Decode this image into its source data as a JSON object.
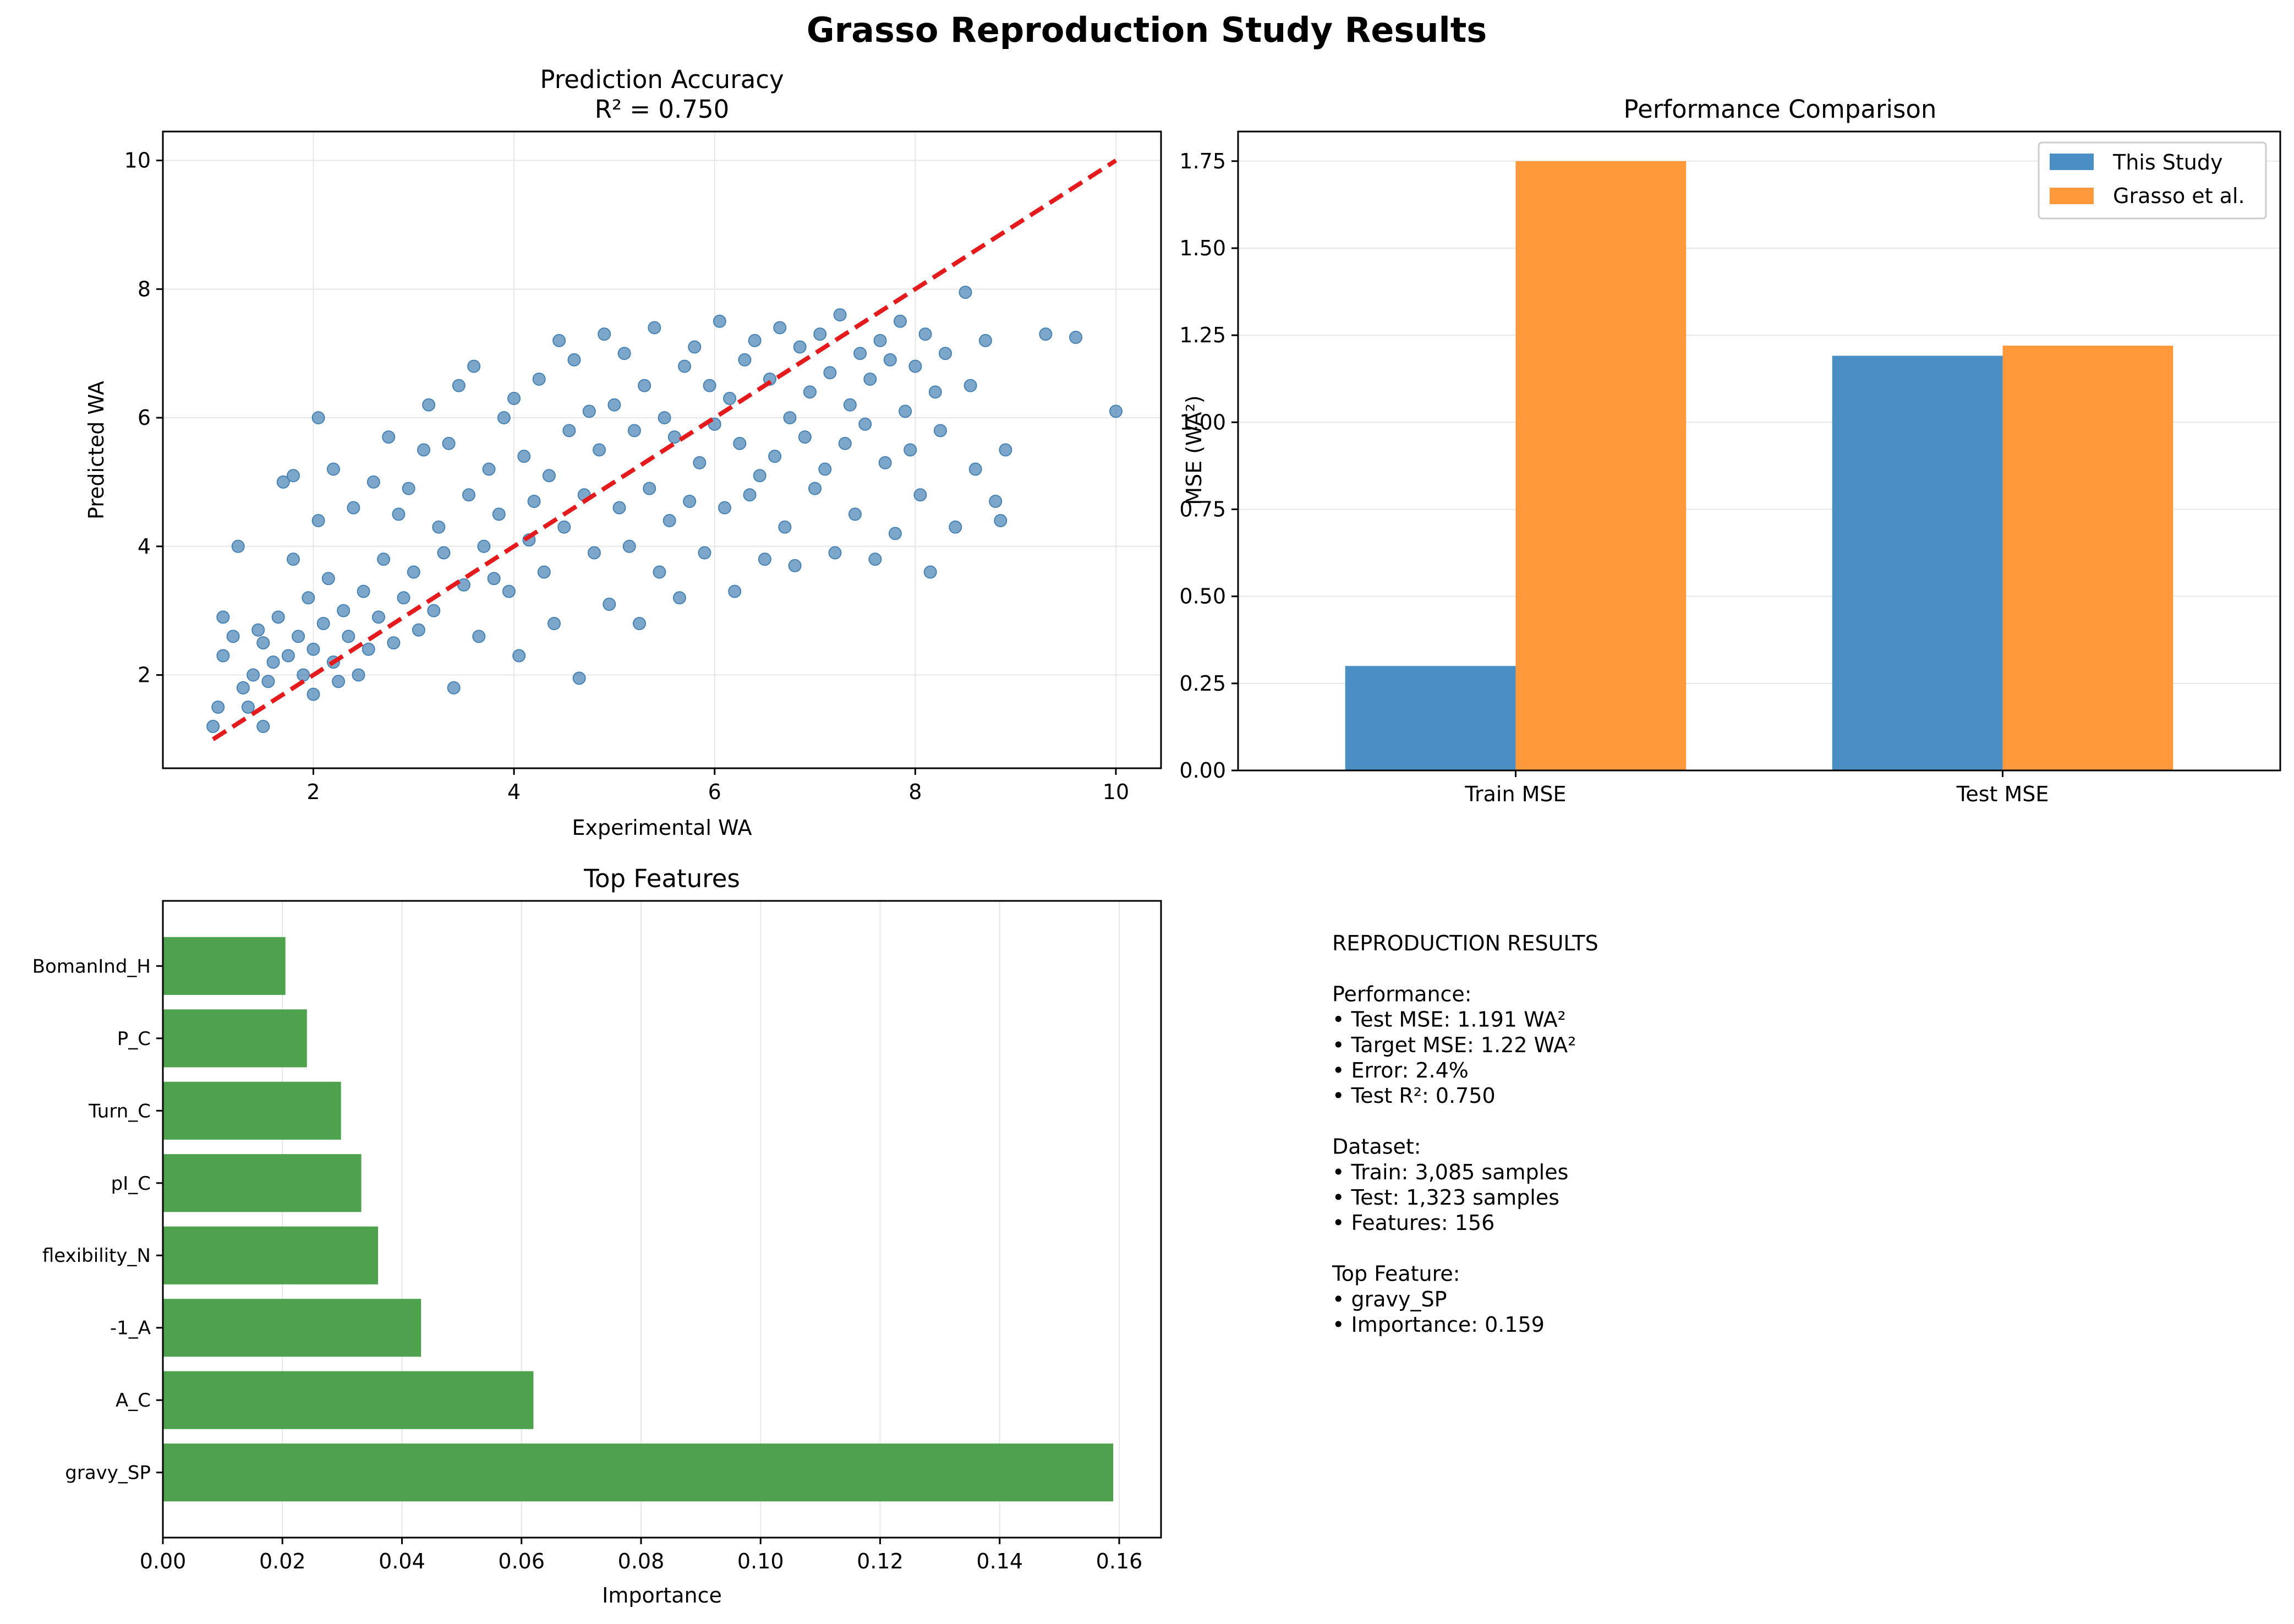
{
  "suptitle": "Grasso Reproduction Study Results",
  "chart_data": [
    {
      "type": "scatter",
      "title": "Prediction Accuracy",
      "subtitle": "R² = 0.750",
      "xlabel": "Experimental WA",
      "ylabel": "Predicted WA",
      "xlim": [
        0.5,
        10.45
      ],
      "ylim": [
        0.55,
        10.45
      ],
      "xticks": [
        2,
        4,
        6,
        8,
        10
      ],
      "yticks": [
        2,
        4,
        6,
        8,
        10
      ],
      "grid": true,
      "marker_color": "#4682b4",
      "reference_line": {
        "x": [
          1,
          10
        ],
        "y": [
          1,
          10
        ],
        "color": "#e41a1c",
        "style": "dashed"
      },
      "points": [
        [
          1.0,
          1.2
        ],
        [
          1.05,
          1.5
        ],
        [
          1.1,
          2.9
        ],
        [
          1.1,
          2.3
        ],
        [
          1.2,
          2.6
        ],
        [
          1.25,
          4.0
        ],
        [
          1.3,
          1.8
        ],
        [
          1.35,
          1.5
        ],
        [
          1.4,
          2.0
        ],
        [
          1.45,
          2.7
        ],
        [
          1.5,
          2.5
        ],
        [
          1.5,
          1.2
        ],
        [
          1.55,
          1.9
        ],
        [
          1.6,
          2.2
        ],
        [
          1.65,
          2.9
        ],
        [
          1.7,
          5.0
        ],
        [
          1.75,
          2.3
        ],
        [
          1.8,
          5.1
        ],
        [
          1.8,
          3.8
        ],
        [
          1.85,
          2.6
        ],
        [
          1.9,
          2.0
        ],
        [
          1.95,
          3.2
        ],
        [
          2.0,
          2.4
        ],
        [
          2.0,
          1.7
        ],
        [
          2.05,
          4.4
        ],
        [
          2.05,
          6.0
        ],
        [
          2.1,
          2.8
        ],
        [
          2.15,
          3.5
        ],
        [
          2.2,
          2.2
        ],
        [
          2.2,
          5.2
        ],
        [
          2.25,
          1.9
        ],
        [
          2.3,
          3.0
        ],
        [
          2.35,
          2.6
        ],
        [
          2.4,
          4.6
        ],
        [
          2.45,
          2.0
        ],
        [
          2.5,
          3.3
        ],
        [
          2.55,
          2.4
        ],
        [
          2.6,
          5.0
        ],
        [
          2.65,
          2.9
        ],
        [
          2.7,
          3.8
        ],
        [
          2.75,
          5.7
        ],
        [
          2.8,
          2.5
        ],
        [
          2.85,
          4.5
        ],
        [
          2.9,
          3.2
        ],
        [
          2.95,
          4.9
        ],
        [
          3.0,
          3.6
        ],
        [
          3.05,
          2.7
        ],
        [
          3.1,
          5.5
        ],
        [
          3.15,
          6.2
        ],
        [
          3.2,
          3.0
        ],
        [
          3.25,
          4.3
        ],
        [
          3.3,
          3.9
        ],
        [
          3.35,
          5.6
        ],
        [
          3.4,
          1.8
        ],
        [
          3.45,
          6.5
        ],
        [
          3.5,
          3.4
        ],
        [
          3.55,
          4.8
        ],
        [
          3.6,
          6.8
        ],
        [
          3.65,
          2.6
        ],
        [
          3.7,
          4.0
        ],
        [
          3.75,
          5.2
        ],
        [
          3.8,
          3.5
        ],
        [
          3.85,
          4.5
        ],
        [
          3.9,
          6.0
        ],
        [
          3.95,
          3.3
        ],
        [
          4.0,
          6.3
        ],
        [
          4.05,
          2.3
        ],
        [
          4.1,
          5.4
        ],
        [
          4.15,
          4.1
        ],
        [
          4.2,
          4.7
        ],
        [
          4.25,
          6.6
        ],
        [
          4.3,
          3.6
        ],
        [
          4.35,
          5.1
        ],
        [
          4.4,
          2.8
        ],
        [
          4.45,
          7.2
        ],
        [
          4.5,
          4.3
        ],
        [
          4.55,
          5.8
        ],
        [
          4.6,
          6.9
        ],
        [
          4.65,
          1.95
        ],
        [
          4.7,
          4.8
        ],
        [
          4.75,
          6.1
        ],
        [
          4.8,
          3.9
        ],
        [
          4.85,
          5.5
        ],
        [
          4.9,
          7.3
        ],
        [
          4.95,
          3.1
        ],
        [
          5.0,
          6.2
        ],
        [
          5.05,
          4.6
        ],
        [
          5.1,
          7.0
        ],
        [
          5.15,
          4.0
        ],
        [
          5.2,
          5.8
        ],
        [
          5.25,
          2.8
        ],
        [
          5.3,
          6.5
        ],
        [
          5.35,
          4.9
        ],
        [
          5.4,
          7.4
        ],
        [
          5.45,
          3.6
        ],
        [
          5.5,
          6.0
        ],
        [
          5.55,
          4.4
        ],
        [
          5.6,
          5.7
        ],
        [
          5.65,
          3.2
        ],
        [
          5.7,
          6.8
        ],
        [
          5.75,
          4.7
        ],
        [
          5.8,
          7.1
        ],
        [
          5.85,
          5.3
        ],
        [
          5.9,
          3.9
        ],
        [
          5.95,
          6.5
        ],
        [
          6.0,
          5.9
        ],
        [
          6.05,
          7.5
        ],
        [
          6.1,
          4.6
        ],
        [
          6.15,
          6.3
        ],
        [
          6.2,
          3.3
        ],
        [
          6.25,
          5.6
        ],
        [
          6.3,
          6.9
        ],
        [
          6.35,
          4.8
        ],
        [
          6.4,
          7.2
        ],
        [
          6.45,
          5.1
        ],
        [
          6.5,
          3.8
        ],
        [
          6.55,
          6.6
        ],
        [
          6.6,
          5.4
        ],
        [
          6.65,
          7.4
        ],
        [
          6.7,
          4.3
        ],
        [
          6.75,
          6.0
        ],
        [
          6.8,
          3.7
        ],
        [
          6.85,
          7.1
        ],
        [
          6.9,
          5.7
        ],
        [
          6.95,
          6.4
        ],
        [
          7.0,
          4.9
        ],
        [
          7.05,
          7.3
        ],
        [
          7.1,
          5.2
        ],
        [
          7.15,
          6.7
        ],
        [
          7.2,
          3.9
        ],
        [
          7.25,
          7.6
        ],
        [
          7.3,
          5.6
        ],
        [
          7.35,
          6.2
        ],
        [
          7.4,
          4.5
        ],
        [
          7.45,
          7.0
        ],
        [
          7.5,
          5.9
        ],
        [
          7.55,
          6.6
        ],
        [
          7.6,
          3.8
        ],
        [
          7.65,
          7.2
        ],
        [
          7.7,
          5.3
        ],
        [
          7.75,
          6.9
        ],
        [
          7.8,
          4.2
        ],
        [
          7.85,
          7.5
        ],
        [
          7.9,
          6.1
        ],
        [
          7.95,
          5.5
        ],
        [
          8.0,
          6.8
        ],
        [
          8.05,
          4.8
        ],
        [
          8.1,
          7.3
        ],
        [
          8.15,
          3.6
        ],
        [
          8.2,
          6.4
        ],
        [
          8.25,
          5.8
        ],
        [
          8.3,
          7.0
        ],
        [
          8.4,
          4.3
        ],
        [
          8.5,
          7.95
        ],
        [
          8.55,
          6.5
        ],
        [
          8.6,
          5.2
        ],
        [
          8.7,
          7.2
        ],
        [
          8.8,
          4.7
        ],
        [
          8.85,
          4.4
        ],
        [
          8.9,
          5.5
        ],
        [
          9.3,
          7.3
        ],
        [
          9.6,
          7.25
        ],
        [
          10.0,
          6.1
        ]
      ]
    },
    {
      "type": "bar",
      "title": "Performance Comparison",
      "ylabel": "MSE (WA²)",
      "categories": [
        "Train MSE",
        "Test MSE"
      ],
      "series": [
        {
          "name": "This Study",
          "values": [
            0.3,
            1.191
          ],
          "color": "#4a8fc4"
        },
        {
          "name": "Grasso et al.",
          "values": [
            1.75,
            1.22
          ],
          "color": "#ff993c"
        }
      ],
      "ylim": [
        0,
        1.835
      ],
      "yticks": [
        "0.00",
        "0.25",
        "0.50",
        "0.75",
        "1.00",
        "1.25",
        "1.50",
        "1.75"
      ],
      "grid": true,
      "legend_position": "top-right"
    },
    {
      "type": "bar",
      "orientation": "horizontal",
      "title": "Top Features",
      "xlabel": "Importance",
      "categories": [
        "BomanInd_H",
        "P_C",
        "Turn_C",
        "pI_C",
        "flexibility_N",
        "-1_A",
        "A_C",
        "gravy_SP"
      ],
      "values": [
        0.0205,
        0.0241,
        0.0298,
        0.0332,
        0.036,
        0.0432,
        0.062,
        0.159
      ],
      "color": "#4ea24e",
      "xlim": [
        0,
        0.167
      ],
      "xticks": [
        "0.00",
        "0.02",
        "0.04",
        "0.06",
        "0.08",
        "0.10",
        "0.12",
        "0.14",
        "0.16"
      ],
      "grid": true
    }
  ],
  "summary": {
    "lines": [
      "REPRODUCTION RESULTS",
      "",
      "Performance:",
      "• Test MSE: 1.191 WA²",
      "• Target MSE: 1.22 WA²",
      "• Error: 2.4%",
      "• Test R²: 0.750",
      "",
      "Dataset:",
      "• Train: 3,085 samples",
      "• Test: 1,323 samples",
      "• Features: 156",
      "",
      "Top Feature:",
      "• gravy_SP",
      "• Importance: 0.159"
    ]
  }
}
